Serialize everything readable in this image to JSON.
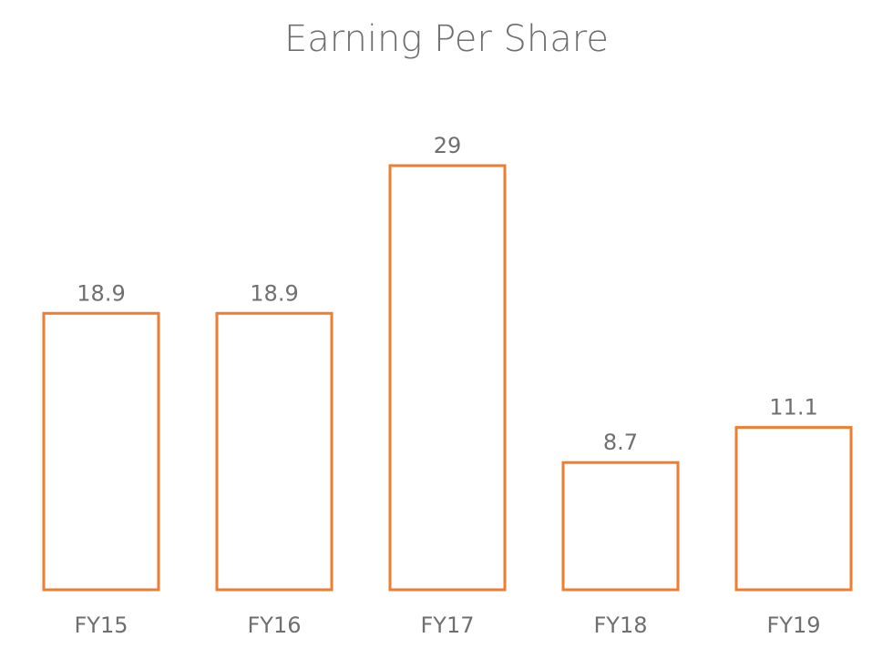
{
  "chart_data": {
    "type": "bar",
    "title": "Earning Per Share",
    "categories": [
      "FY15",
      "FY16",
      "FY17",
      "FY18",
      "FY19"
    ],
    "values": [
      18.9,
      18.9,
      29,
      8.7,
      11.1
    ],
    "value_labels": [
      "18.9",
      "18.9",
      "29",
      "8.7",
      "11.1"
    ],
    "xlabel": "",
    "ylabel": "",
    "ylim": [
      0,
      29
    ],
    "grid": false,
    "legend": "none",
    "bar_style": "outline",
    "colors": {
      "bar_outline": "#ed7d31",
      "bar_fill": "#ffffff",
      "text": "#6f6f6f"
    }
  }
}
